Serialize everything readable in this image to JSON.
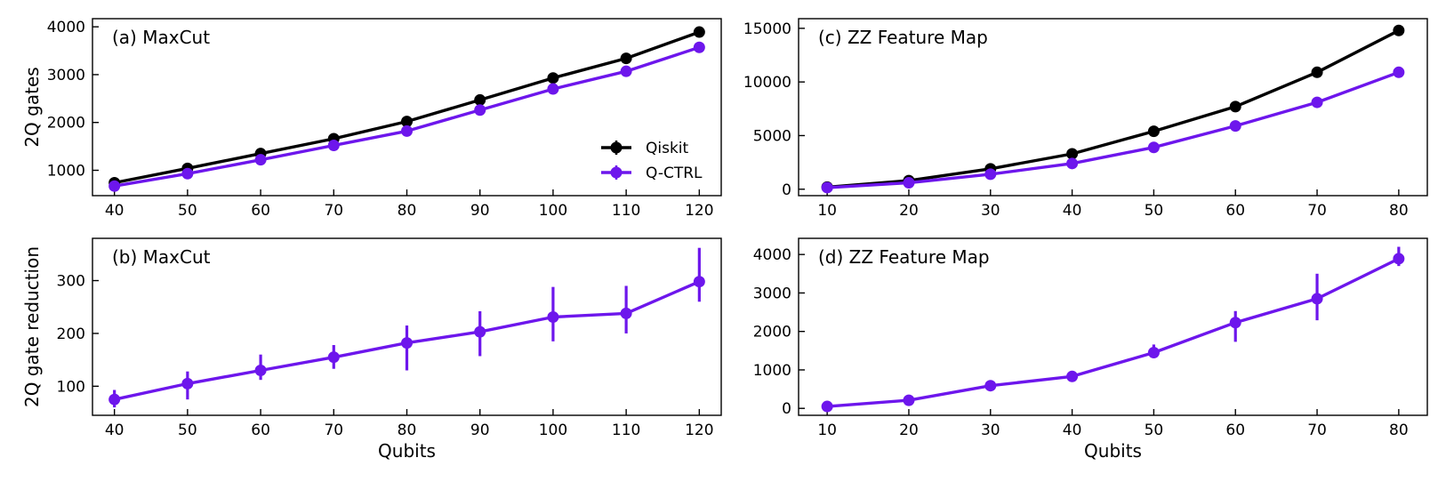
{
  "colors": {
    "qiskit": "#000000",
    "qctrl": "#6d16ec"
  },
  "chart_data": [
    {
      "id": "a",
      "type": "line",
      "title": "(a) MaxCut",
      "xlabel": "",
      "ylabel": "2Q gates",
      "x": [
        40,
        50,
        60,
        70,
        80,
        90,
        100,
        110,
        120
      ],
      "xticks": [
        40,
        50,
        60,
        70,
        80,
        90,
        100,
        110,
        120
      ],
      "xlim": [
        37,
        123
      ],
      "yticks": [
        1000,
        2000,
        3000,
        4000
      ],
      "ylim": [
        470,
        4170
      ],
      "legend": "center-right",
      "series": [
        {
          "name": "Qiskit",
          "color_key": "qiskit",
          "values": [
            740,
            1040,
            1350,
            1660,
            2020,
            2470,
            2930,
            3340,
            3890
          ]
        },
        {
          "name": "Q-CTRL",
          "color_key": "qctrl",
          "values": [
            670,
            930,
            1220,
            1520,
            1820,
            2260,
            2700,
            3070,
            3570
          ]
        }
      ]
    },
    {
      "id": "b",
      "type": "line",
      "title": "(b) MaxCut",
      "xlabel": "Qubits",
      "ylabel": "2Q gate reduction",
      "x": [
        40,
        50,
        60,
        70,
        80,
        90,
        100,
        110,
        120
      ],
      "xticks": [
        40,
        50,
        60,
        70,
        80,
        90,
        100,
        110,
        120
      ],
      "xlim": [
        37,
        123
      ],
      "yticks": [
        100,
        200,
        300
      ],
      "ylim": [
        45,
        380
      ],
      "series": [
        {
          "name": "Q-CTRL",
          "color_key": "qctrl",
          "values": [
            75,
            105,
            130,
            155,
            182,
            203,
            231,
            238,
            298
          ],
          "err_low": [
            60,
            75,
            112,
            133,
            130,
            157,
            185,
            200,
            260
          ],
          "err_high": [
            93,
            128,
            160,
            178,
            215,
            242,
            288,
            290,
            362
          ]
        }
      ]
    },
    {
      "id": "c",
      "type": "line",
      "title": "(c) ZZ Feature Map",
      "xlabel": "",
      "ylabel": "",
      "x": [
        10,
        20,
        30,
        40,
        50,
        60,
        70,
        80
      ],
      "xticks": [
        10,
        20,
        30,
        40,
        50,
        60,
        70,
        80
      ],
      "xlim": [
        6.5,
        83.5
      ],
      "yticks": [
        0,
        5000,
        10000,
        15000
      ],
      "ylim": [
        -600,
        15900
      ],
      "series": [
        {
          "name": "Qiskit",
          "color_key": "qiskit",
          "values": [
            200,
            800,
            1900,
            3300,
            5400,
            7700,
            10900,
            14800
          ]
        },
        {
          "name": "Q-CTRL",
          "color_key": "qctrl",
          "values": [
            150,
            600,
            1400,
            2400,
            3900,
            5900,
            8100,
            10900
          ]
        }
      ]
    },
    {
      "id": "d",
      "type": "line",
      "title": "(d) ZZ Feature Map",
      "xlabel": "Qubits",
      "ylabel": "",
      "x": [
        10,
        20,
        30,
        40,
        50,
        60,
        70,
        80
      ],
      "xticks": [
        10,
        20,
        30,
        40,
        50,
        60,
        70,
        80
      ],
      "xlim": [
        6.5,
        83.5
      ],
      "yticks": [
        0,
        1000,
        2000,
        3000,
        4000
      ],
      "ylim": [
        -180,
        4420
      ],
      "series": [
        {
          "name": "Q-CTRL",
          "color_key": "qctrl",
          "values": [
            50,
            210,
            590,
            830,
            1450,
            2230,
            2850,
            3890
          ],
          "err_low": [
            20,
            180,
            540,
            780,
            1320,
            1730,
            2290,
            3700
          ],
          "err_high": [
            80,
            240,
            640,
            880,
            1660,
            2530,
            3500,
            4200
          ]
        }
      ]
    }
  ]
}
